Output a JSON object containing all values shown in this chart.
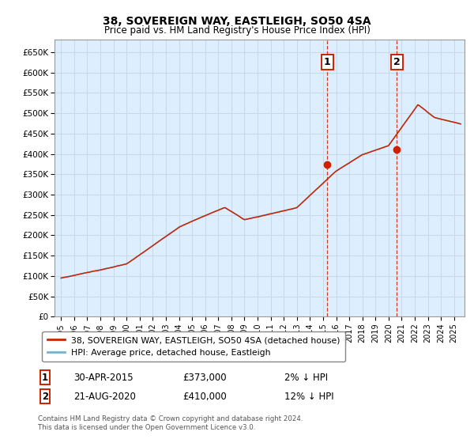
{
  "title": "38, SOVEREIGN WAY, EASTLEIGH, SO50 4SA",
  "subtitle": "Price paid vs. HM Land Registry's House Price Index (HPI)",
  "yticks": [
    0,
    50000,
    100000,
    150000,
    200000,
    250000,
    300000,
    350000,
    400000,
    450000,
    500000,
    550000,
    600000,
    650000
  ],
  "ylim": [
    0,
    680000
  ],
  "xlim_start": 1994.5,
  "xlim_end": 2025.8,
  "hpi_color": "#7ab0d4",
  "price_color": "#cc2200",
  "marker_color": "#cc2200",
  "sale1_x": 2015.33,
  "sale1_y": 373000,
  "sale1_label": "1",
  "sale2_x": 2020.64,
  "sale2_y": 410000,
  "sale2_label": "2",
  "vline_color": "#cc2200",
  "grid_color": "#c8d8e8",
  "bg_color": "#ddeeff",
  "legend_line1": "38, SOVEREIGN WAY, EASTLEIGH, SO50 4SA (detached house)",
  "legend_line2": "HPI: Average price, detached house, Eastleigh",
  "annotation1_date": "30-APR-2015",
  "annotation1_price": "£373,000",
  "annotation1_hpi": "2% ↓ HPI",
  "annotation2_date": "21-AUG-2020",
  "annotation2_price": "£410,000",
  "annotation2_hpi": "12% ↓ HPI",
  "footer": "Contains HM Land Registry data © Crown copyright and database right 2024.\nThis data is licensed under the Open Government Licence v3.0."
}
